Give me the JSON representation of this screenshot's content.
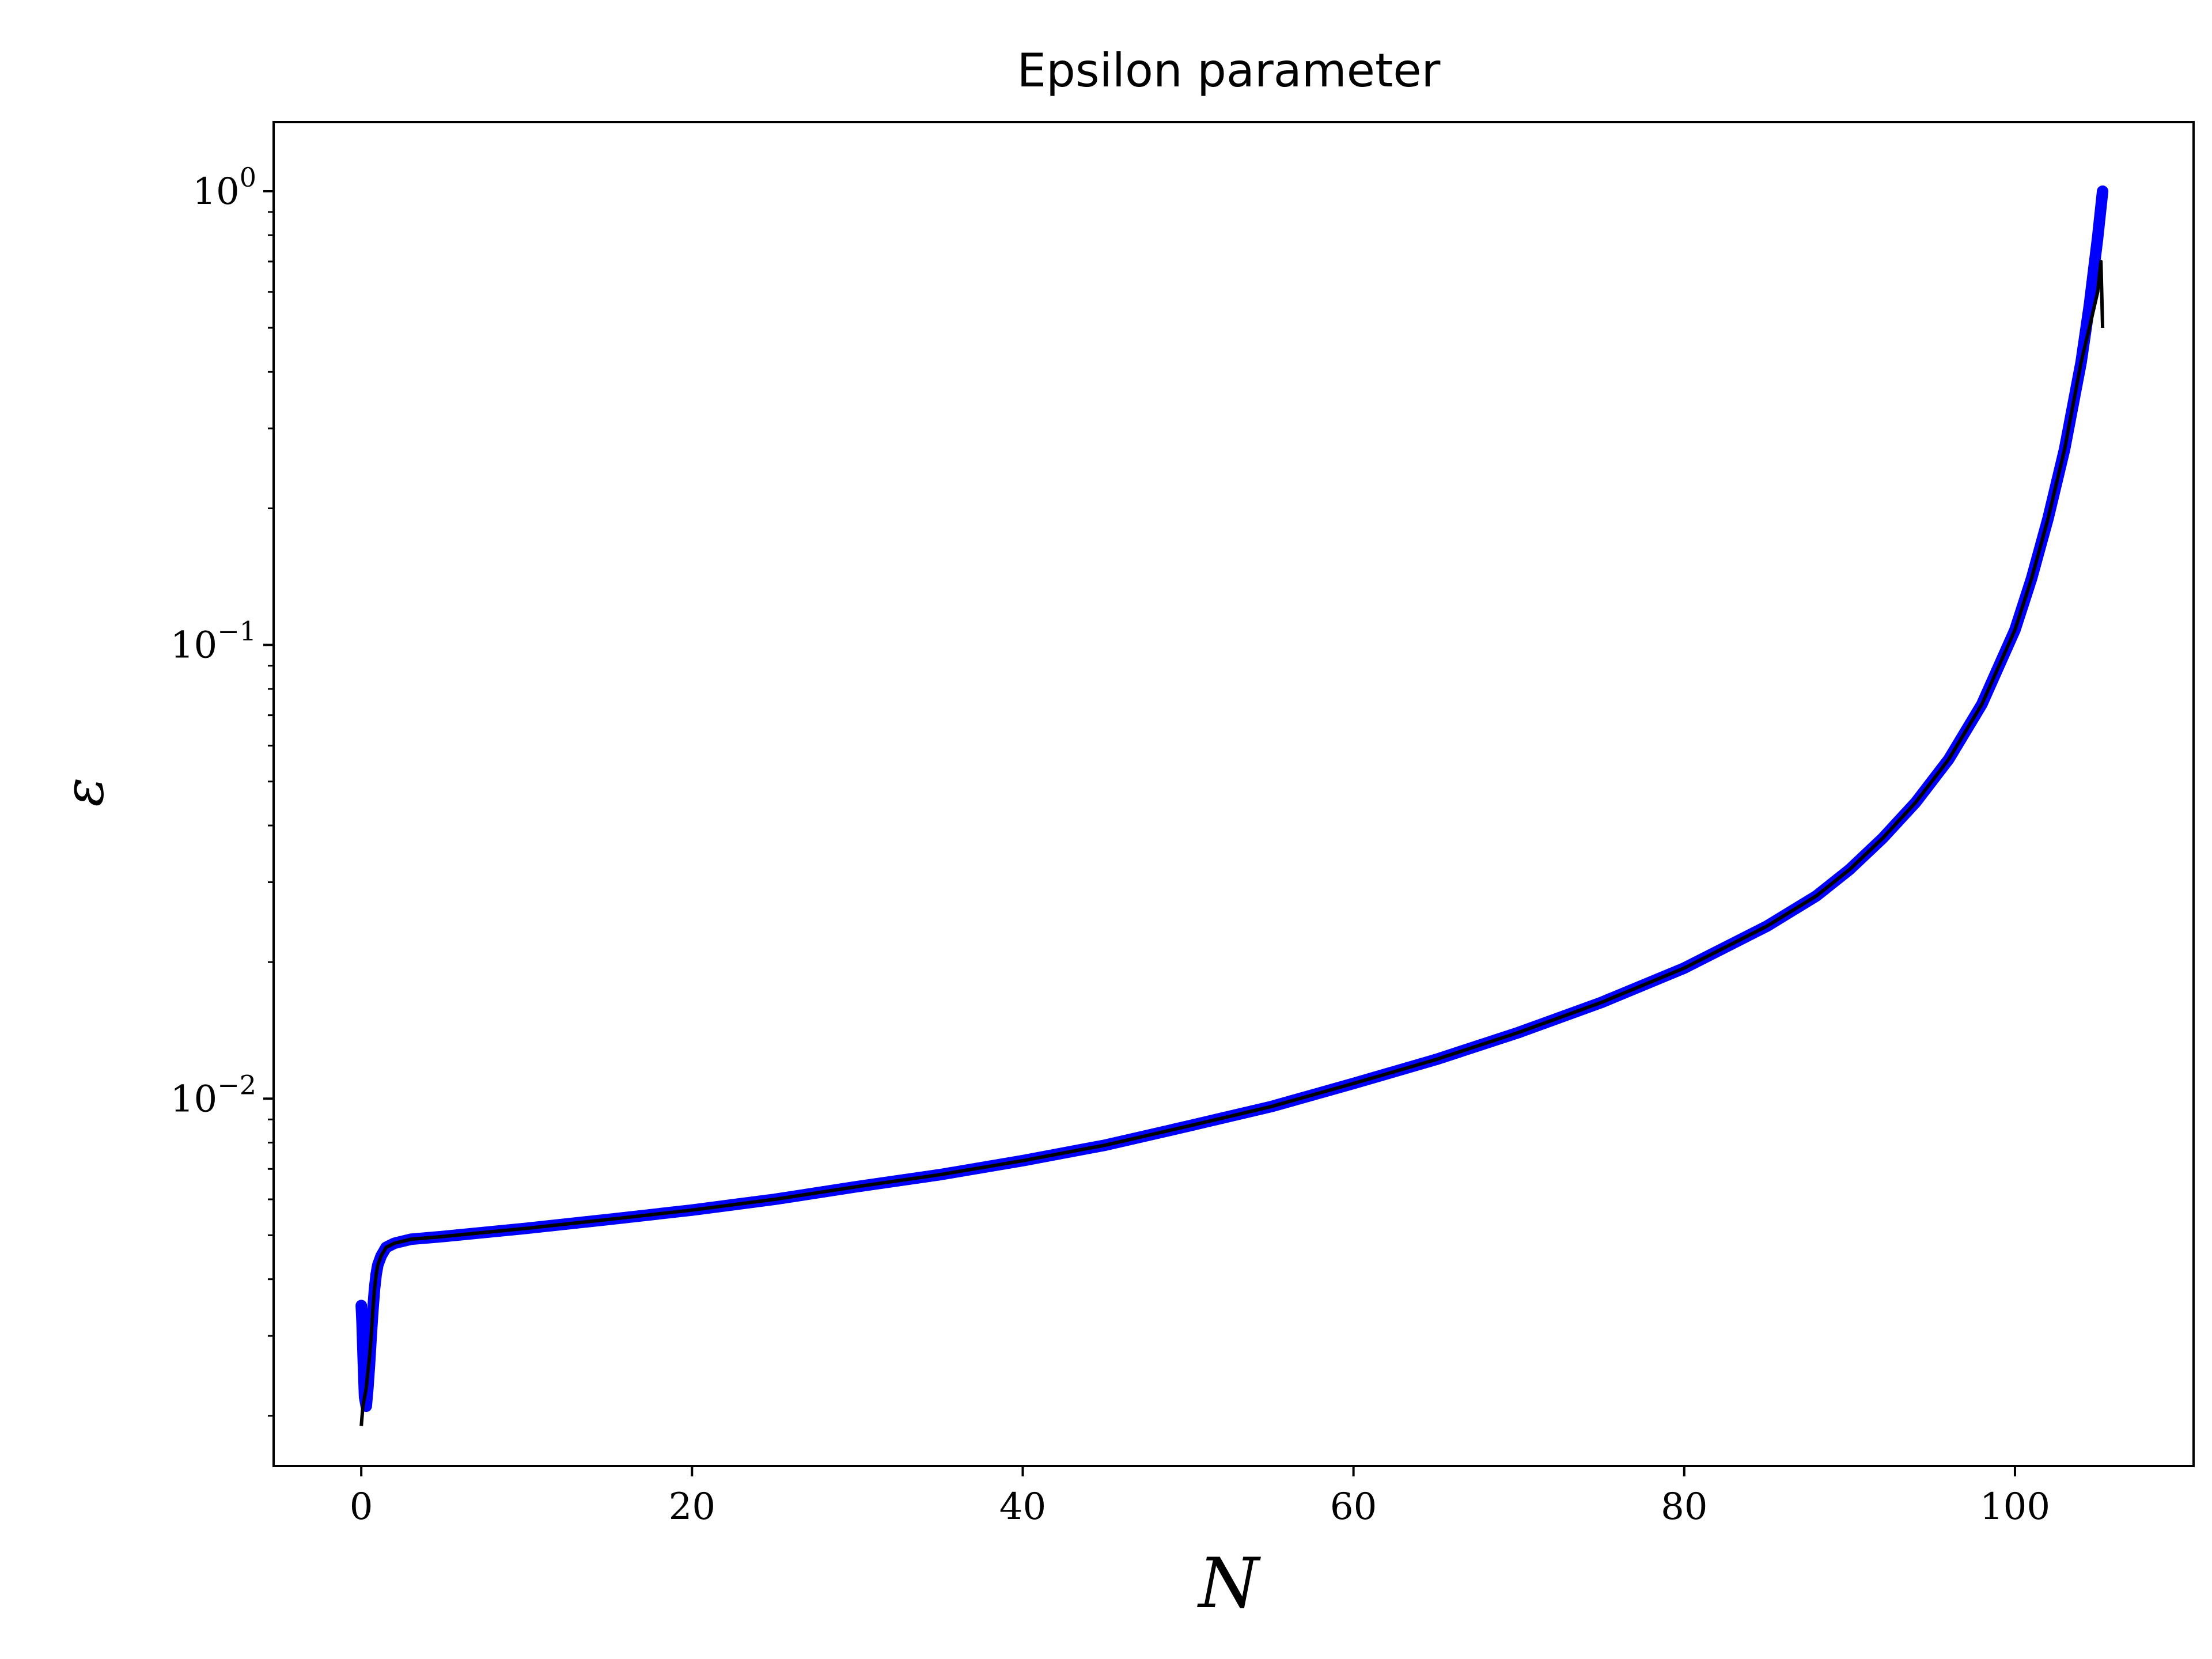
{
  "chart_data": {
    "type": "line",
    "title": "Epsilon parameter",
    "xlabel": "N",
    "ylabel": "ε",
    "xlim": [
      -5.3,
      110.8
    ],
    "ylim": [
      0.00155,
      1.42
    ],
    "yscale": "log",
    "grid": false,
    "x_ticks": [
      0,
      20,
      40,
      60,
      80,
      100
    ],
    "x_tick_labels": [
      "0",
      "20",
      "40",
      "60",
      "80",
      "100"
    ],
    "y_ticks": [
      0.01,
      0.1,
      1
    ],
    "y_tick_labels": [
      {
        "base": "10",
        "exp": "−2"
      },
      {
        "base": "10",
        "exp": "−1"
      },
      {
        "base": "10",
        "exp": "0"
      }
    ],
    "colors": {
      "markers": "#0000ff",
      "line": "#000000"
    },
    "series": [
      {
        "style": "markers",
        "x": [
          0.0,
          0.05,
          0.1,
          0.2,
          0.3,
          0.4,
          0.5,
          0.6,
          0.7,
          0.8,
          0.9,
          1.0,
          1.2,
          1.5,
          2.0,
          2.5,
          3.0,
          5,
          10,
          15,
          20,
          25,
          30,
          35,
          40,
          45,
          50,
          55,
          60,
          65,
          70,
          75,
          80,
          85,
          88,
          90,
          92,
          94,
          96,
          98,
          100,
          101,
          102,
          103,
          104,
          104.5,
          105,
          105.3
        ],
        "y": [
          0.0035,
          0.0032,
          0.0028,
          0.0022,
          0.0021,
          0.0023,
          0.0026,
          0.003,
          0.0034,
          0.0038,
          0.0041,
          0.0043,
          0.0045,
          0.0047,
          0.0048,
          0.00485,
          0.0049,
          0.00497,
          0.00518,
          0.00542,
          0.00568,
          0.006,
          0.0064,
          0.0068,
          0.0073,
          0.0079,
          0.0087,
          0.0096,
          0.0108,
          0.0122,
          0.014,
          0.0163,
          0.0194,
          0.024,
          0.028,
          0.032,
          0.0375,
          0.045,
          0.056,
          0.074,
          0.108,
          0.14,
          0.19,
          0.27,
          0.42,
          0.56,
          0.79,
          1.0
        ]
      },
      {
        "style": "line",
        "x": [
          0.0,
          0.05,
          0.1,
          0.2,
          0.3,
          0.4,
          0.5,
          0.6,
          0.7,
          0.8,
          0.9,
          1.0,
          1.2,
          1.5,
          2.0,
          2.5,
          3.0,
          5,
          10,
          15,
          20,
          25,
          30,
          35,
          40,
          45,
          50,
          55,
          60,
          65,
          70,
          75,
          80,
          85,
          88,
          90,
          92,
          94,
          96,
          98,
          100,
          101,
          102,
          103,
          104,
          104.5,
          105,
          105.2,
          105.3
        ],
        "y": [
          0.0019,
          0.002,
          0.0021,
          0.0022,
          0.0023,
          0.0025,
          0.0027,
          0.003,
          0.0034,
          0.0038,
          0.0041,
          0.0043,
          0.0045,
          0.0047,
          0.0048,
          0.00485,
          0.0049,
          0.00497,
          0.00518,
          0.00542,
          0.00568,
          0.006,
          0.0064,
          0.0068,
          0.0073,
          0.0079,
          0.0087,
          0.0096,
          0.0108,
          0.0122,
          0.014,
          0.0163,
          0.0194,
          0.024,
          0.028,
          0.032,
          0.0375,
          0.045,
          0.056,
          0.074,
          0.108,
          0.14,
          0.19,
          0.27,
          0.42,
          0.5,
          0.6,
          0.7,
          0.5
        ]
      }
    ]
  }
}
